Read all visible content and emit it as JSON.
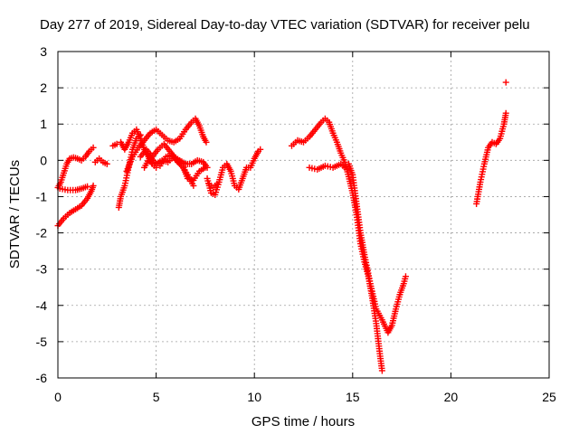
{
  "chart_data": {
    "type": "scatter",
    "title": "Day 277 of 2019, Sidereal Day-to-day VTEC variation (SDTVAR) for receiver pelu",
    "xlabel": "GPS time / hours",
    "ylabel": "SDTVAR / TECUs",
    "xlim": [
      0,
      25
    ],
    "ylim": [
      -6,
      3
    ],
    "xticks": [
      0,
      5,
      10,
      15,
      20,
      25
    ],
    "yticks": [
      -6,
      -5,
      -4,
      -3,
      -2,
      -1,
      0,
      1,
      2,
      3
    ],
    "grid": true,
    "marker": "+",
    "color": "#ff0000",
    "series": [
      {
        "name": "SDTVAR",
        "segments": [
          [
            [
              0.0,
              -1.8
            ],
            [
              0.3,
              -1.6
            ],
            [
              0.6,
              -1.45
            ],
            [
              0.9,
              -1.35
            ],
            [
              1.2,
              -1.25
            ],
            [
              1.5,
              -1.05
            ],
            [
              1.7,
              -0.85
            ],
            [
              1.8,
              -0.7
            ]
          ],
          [
            [
              0.0,
              -0.75
            ],
            [
              0.15,
              -0.6
            ],
            [
              0.3,
              -0.35
            ],
            [
              0.45,
              -0.1
            ],
            [
              0.6,
              0.05
            ],
            [
              0.8,
              0.08
            ],
            [
              1.0,
              0.05
            ],
            [
              1.2,
              0.0
            ],
            [
              1.4,
              0.1
            ],
            [
              1.6,
              0.25
            ],
            [
              1.8,
              0.35
            ]
          ],
          [
            [
              0.1,
              -0.78
            ],
            [
              0.5,
              -0.82
            ],
            [
              0.9,
              -0.82
            ],
            [
              1.2,
              -0.78
            ],
            [
              1.5,
              -0.72
            ]
          ],
          [
            [
              1.9,
              -0.05
            ],
            [
              2.1,
              0.05
            ],
            [
              2.3,
              -0.05
            ],
            [
              2.5,
              -0.1
            ]
          ],
          [
            [
              2.8,
              0.4
            ],
            [
              3.0,
              0.45
            ]
          ],
          [
            [
              3.1,
              -1.3
            ],
            [
              3.2,
              -1.0
            ],
            [
              3.4,
              -0.7
            ],
            [
              3.6,
              -0.2
            ],
            [
              3.8,
              0.3
            ],
            [
              4.0,
              0.6
            ],
            [
              4.2,
              0.7
            ]
          ],
          [
            [
              3.2,
              0.5
            ],
            [
              3.4,
              0.3
            ],
            [
              3.6,
              0.5
            ],
            [
              3.8,
              0.75
            ],
            [
              4.0,
              0.85
            ],
            [
              4.2,
              0.6
            ],
            [
              4.4,
              0.3
            ],
            [
              4.6,
              0.1
            ],
            [
              4.8,
              -0.1
            ],
            [
              5.0,
              -0.2
            ]
          ],
          [
            [
              3.5,
              -0.3
            ],
            [
              3.8,
              0.1
            ],
            [
              4.1,
              0.35
            ],
            [
              4.4,
              0.55
            ],
            [
              4.7,
              0.75
            ],
            [
              5.0,
              0.85
            ],
            [
              5.3,
              0.7
            ],
            [
              5.6,
              0.55
            ],
            [
              5.9,
              0.5
            ],
            [
              6.2,
              0.6
            ],
            [
              6.5,
              0.85
            ],
            [
              6.8,
              1.05
            ],
            [
              7.0,
              1.15
            ],
            [
              7.2,
              0.95
            ],
            [
              7.4,
              0.65
            ],
            [
              7.55,
              0.5
            ]
          ],
          [
            [
              4.2,
              0.1
            ],
            [
              4.5,
              0.3
            ],
            [
              4.8,
              0.1
            ],
            [
              5.1,
              0.3
            ],
            [
              5.4,
              0.45
            ],
            [
              5.7,
              0.25
            ],
            [
              6.0,
              0.05
            ],
            [
              6.3,
              -0.15
            ],
            [
              6.6,
              -0.4
            ],
            [
              6.9,
              -0.7
            ]
          ],
          [
            [
              4.4,
              -0.2
            ],
            [
              4.7,
              0.1
            ],
            [
              5.0,
              -0.1
            ],
            [
              5.3,
              0.0
            ],
            [
              5.6,
              -0.05
            ],
            [
              5.9,
              0.1
            ],
            [
              6.2,
              0.0
            ],
            [
              6.5,
              -0.1
            ],
            [
              6.8,
              -0.1
            ],
            [
              7.1,
              0.0
            ],
            [
              7.4,
              -0.05
            ],
            [
              7.6,
              -0.2
            ]
          ],
          [
            [
              5.2,
              -0.15
            ],
            [
              5.5,
              0.1
            ],
            [
              5.8,
              0.15
            ],
            [
              6.1,
              -0.05
            ],
            [
              6.4,
              -0.2
            ],
            [
              6.6,
              -0.5
            ],
            [
              6.9,
              -0.55
            ],
            [
              7.2,
              -0.3
            ],
            [
              7.5,
              -0.2
            ]
          ],
          [
            [
              7.6,
              -0.5
            ],
            [
              7.8,
              -0.9
            ],
            [
              8.0,
              -0.95
            ],
            [
              8.2,
              -0.6
            ],
            [
              8.4,
              -0.2
            ],
            [
              8.6,
              -0.1
            ],
            [
              8.8,
              -0.3
            ],
            [
              9.0,
              -0.7
            ],
            [
              9.2,
              -0.8
            ],
            [
              9.4,
              -0.5
            ],
            [
              9.6,
              -0.2
            ],
            [
              9.8,
              -0.2
            ],
            [
              10.0,
              0.05
            ],
            [
              10.2,
              0.25
            ],
            [
              10.3,
              0.3
            ]
          ],
          [
            [
              7.7,
              -0.65
            ],
            [
              7.9,
              -0.75
            ],
            [
              8.1,
              -0.65
            ]
          ],
          [
            [
              11.9,
              0.4
            ],
            [
              12.2,
              0.55
            ],
            [
              12.5,
              0.5
            ],
            [
              12.8,
              0.65
            ],
            [
              13.1,
              0.85
            ],
            [
              13.4,
              1.05
            ],
            [
              13.6,
              1.15
            ],
            [
              13.8,
              1.05
            ],
            [
              14.0,
              0.75
            ],
            [
              14.2,
              0.5
            ],
            [
              14.4,
              0.2
            ],
            [
              14.6,
              -0.05
            ],
            [
              14.8,
              -0.45
            ],
            [
              15.0,
              -0.9
            ],
            [
              15.2,
              -1.5
            ],
            [
              15.4,
              -2.3
            ],
            [
              15.6,
              -2.8
            ],
            [
              15.8,
              -3.2
            ],
            [
              16.0,
              -3.8
            ],
            [
              16.2,
              -4.5
            ],
            [
              16.4,
              -5.4
            ],
            [
              16.5,
              -5.8
            ]
          ],
          [
            [
              12.8,
              -0.2
            ],
            [
              13.2,
              -0.25
            ],
            [
              13.6,
              -0.15
            ],
            [
              14.0,
              -0.2
            ],
            [
              14.4,
              -0.1
            ],
            [
              14.7,
              -0.25
            ]
          ],
          [
            [
              14.8,
              -0.1
            ],
            [
              15.0,
              -0.4
            ],
            [
              15.2,
              -1.2
            ],
            [
              15.4,
              -2.0
            ],
            [
              15.6,
              -2.6
            ],
            [
              15.9,
              -3.4
            ],
            [
              16.2,
              -4.1
            ],
            [
              16.5,
              -4.4
            ],
            [
              16.8,
              -4.75
            ],
            [
              17.0,
              -4.55
            ],
            [
              17.2,
              -4.1
            ],
            [
              17.4,
              -3.7
            ],
            [
              17.6,
              -3.4
            ],
            [
              17.7,
              -3.2
            ]
          ],
          [
            [
              21.3,
              -1.2
            ],
            [
              21.5,
              -0.6
            ],
            [
              21.7,
              -0.1
            ],
            [
              21.9,
              0.35
            ],
            [
              22.1,
              0.5
            ],
            [
              22.3,
              0.45
            ],
            [
              22.5,
              0.6
            ],
            [
              22.7,
              1.0
            ],
            [
              22.8,
              1.3
            ]
          ],
          [
            [
              22.8,
              2.15
            ]
          ]
        ]
      }
    ]
  }
}
